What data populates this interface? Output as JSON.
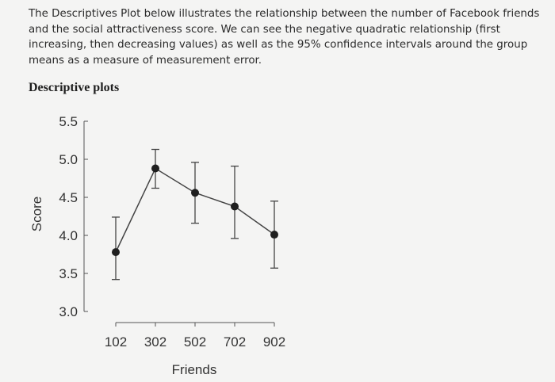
{
  "intro_text": "The Descriptives Plot below illustrates the relationship between the number of Facebook friends and the social attractiveness score. We can see the negative quadratic relationship (first increasing, then decreasing values) as well as the 95% confidence intervals around the group means as a measure of measurement error.",
  "section_heading": "Descriptive plots",
  "chart_data": {
    "type": "line",
    "title": "",
    "xlabel": "Friends",
    "ylabel": "Score",
    "categories": [
      "102",
      "302",
      "502",
      "702",
      "902"
    ],
    "series": [
      {
        "values": [
          3.78,
          4.88,
          4.56,
          4.38,
          4.01
        ],
        "ci_lower": [
          3.42,
          4.62,
          4.16,
          3.96,
          3.57
        ],
        "ci_upper": [
          4.24,
          5.13,
          4.96,
          4.91,
          4.45
        ]
      }
    ],
    "ylim": [
      3.0,
      5.5
    ],
    "yticks": [
      "3.0",
      "3.5",
      "4.0",
      "4.5",
      "5.0",
      "5.5"
    ],
    "grid": false,
    "error_bars": "95% confidence intervals"
  },
  "colors": {
    "line": "#444444",
    "marker": "#1f1f1f",
    "axis": "#555555"
  }
}
